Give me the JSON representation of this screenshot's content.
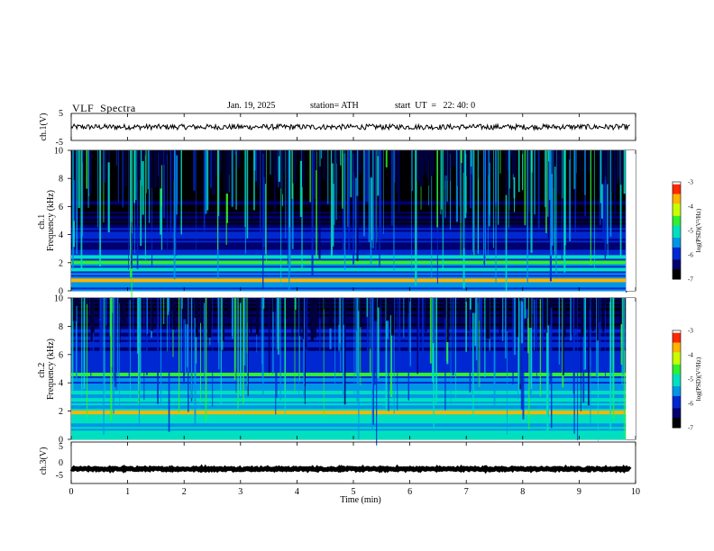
{
  "header": {
    "title": "VLF  Spectra",
    "date": "Jan. 19, 2025",
    "station": "station= ATH",
    "start": "start  UT  =   22: 40: 0"
  },
  "chart_data": [
    {
      "type": "line",
      "name": "panel-ch1-waveform",
      "ylabel": "ch.1(V)",
      "ylim": [
        -5,
        5
      ],
      "yticks": [
        "5",
        "-5"
      ],
      "xlim": [
        0,
        10
      ],
      "trace_level": 0.0,
      "trace_amplitude": 1.0
    },
    {
      "type": "heatmap",
      "name": "panel-ch1-spectrogram",
      "ylabel": "ch.1\nFrequency  (kHz)",
      "ylim": [
        0,
        10
      ],
      "yticks": [
        "0",
        "2",
        "4",
        "6",
        "8",
        "10"
      ],
      "xlim": [
        0,
        9.83
      ],
      "colorbar": {
        "label": "log(PSD)(V²/Hz)",
        "range": [
          -7,
          -3
        ],
        "ticks": [
          "-3",
          "-4",
          "-5",
          "-6",
          "-7"
        ]
      },
      "bands_khz": [
        {
          "f": 0.8,
          "level": -3.6
        },
        {
          "f": 1.5,
          "level": -5.0
        },
        {
          "f": 2.1,
          "level": -4.6
        },
        {
          "f": 2.4,
          "level": -4.9
        },
        {
          "f": 3.8,
          "level": -5.6
        },
        {
          "f": 4.5,
          "level": -6.2
        }
      ]
    },
    {
      "type": "heatmap",
      "name": "panel-ch2-spectrogram",
      "ylabel": "ch.2\nFrequency  (kHz)",
      "ylim": [
        0,
        10
      ],
      "yticks": [
        "0",
        "2",
        "4",
        "6",
        "8",
        "10"
      ],
      "xlim": [
        0,
        9.83
      ],
      "colorbar": {
        "label": "log(PSD)(V²/Hz)",
        "range": [
          -7,
          -3
        ],
        "ticks": [
          "-3",
          "-4",
          "-5",
          "-6",
          "-7"
        ]
      },
      "bands_khz": [
        {
          "f": 1.9,
          "level": -3.7
        },
        {
          "f": 2.8,
          "level": -5.2
        },
        {
          "f": 3.3,
          "level": -5.1
        },
        {
          "f": 4.6,
          "level": -4.5
        }
      ]
    },
    {
      "type": "line",
      "name": "panel-ch3-waveform",
      "ylabel": "ch.3(V)",
      "ylim": [
        -5,
        5
      ],
      "yticks": [
        "5",
        "0",
        "-5"
      ],
      "xlim": [
        0,
        10
      ],
      "trace_level": -1.5,
      "trace_amplitude": 0.2
    }
  ],
  "xaxis": {
    "label": "Time  (min)",
    "ticks": [
      "0",
      "1",
      "2",
      "3",
      "4",
      "5",
      "6",
      "7",
      "8",
      "9",
      "10"
    ],
    "range": [
      0,
      10
    ]
  },
  "colors": {
    "cmap": [
      "#000000",
      "#00006e",
      "#0028d2",
      "#0096e6",
      "#00e0c0",
      "#30f030",
      "#c8ff00",
      "#ffb400",
      "#ff2800",
      "#ffffff"
    ]
  }
}
